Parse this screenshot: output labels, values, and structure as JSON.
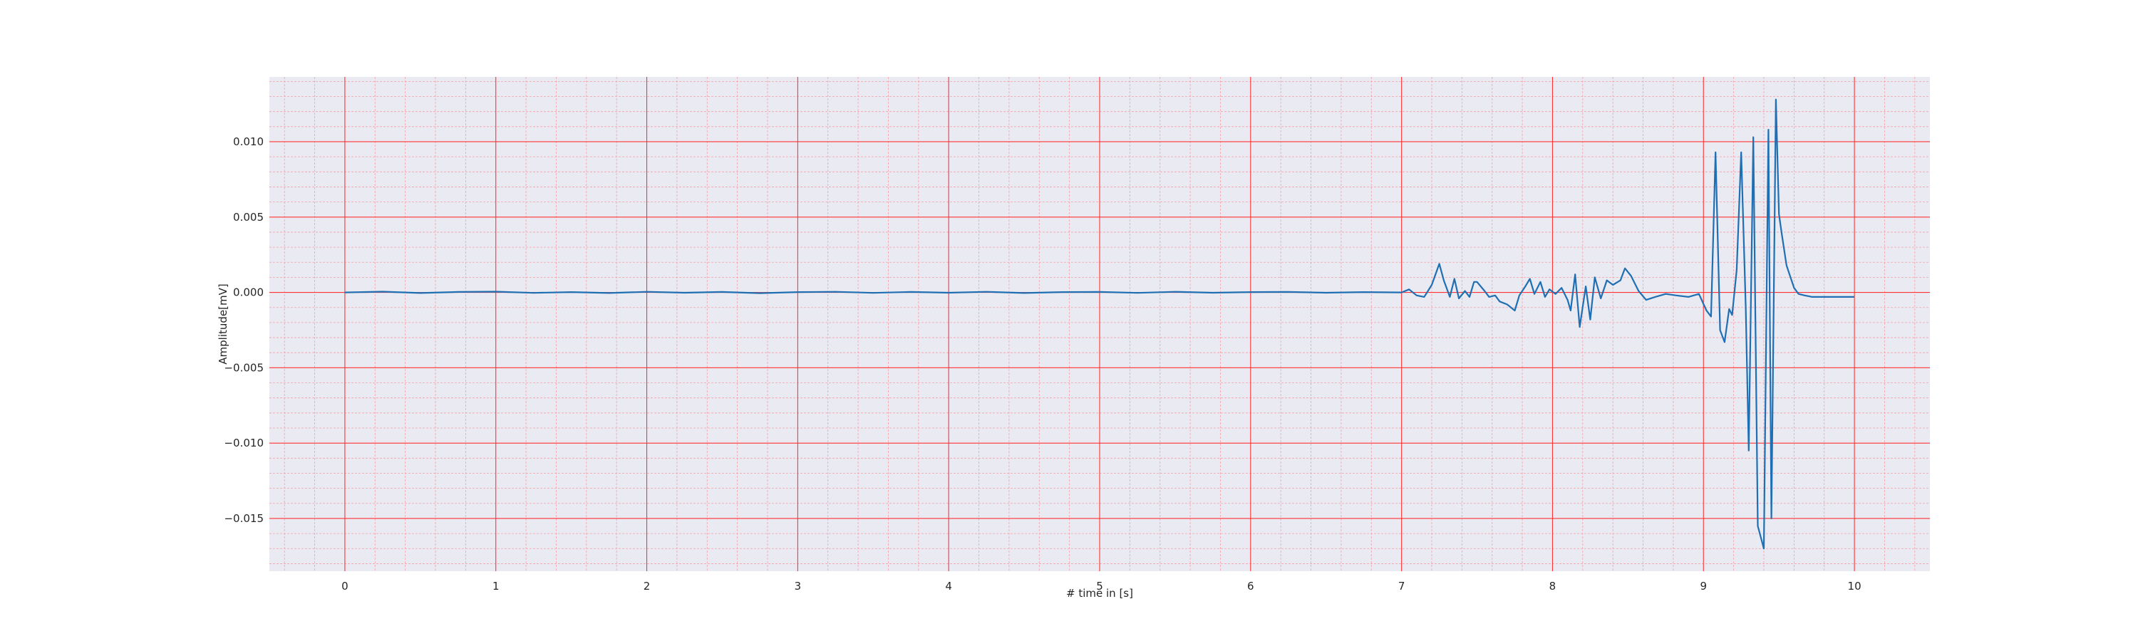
{
  "chart_data": {
    "type": "line",
    "title": "",
    "xlabel": "# time in [s]",
    "ylabel": "Amplitude[mV]",
    "xlim": [
      -0.5,
      10.5
    ],
    "ylim": [
      -0.0185,
      0.0143
    ],
    "x_ticks": [
      0,
      1,
      2,
      3,
      4,
      5,
      6,
      7,
      8,
      9,
      10
    ],
    "x_tick_labels": [
      "0",
      "1",
      "2",
      "3",
      "4",
      "5",
      "6",
      "7",
      "8",
      "9",
      "10"
    ],
    "y_ticks": [
      -0.015,
      -0.01,
      -0.005,
      0.0,
      0.005,
      0.01
    ],
    "y_tick_labels": [
      "−0.015",
      "−0.010",
      "−0.005",
      "0.000",
      "0.005",
      "0.010"
    ],
    "grid": {
      "major": true,
      "minor": true,
      "major_color": "#ff3333",
      "minor_color": "#f5a0a8"
    },
    "background_color": "#eaeaf2",
    "series": [
      {
        "color": "#1f6fb2",
        "x": [
          0,
          0.25,
          0.5,
          0.75,
          1,
          1.25,
          1.5,
          1.75,
          2,
          2.25,
          2.5,
          2.75,
          3,
          3.25,
          3.5,
          3.75,
          4,
          4.25,
          4.5,
          4.75,
          5,
          5.25,
          5.5,
          5.75,
          6,
          6.25,
          6.5,
          6.75,
          7,
          7.05,
          7.1,
          7.15,
          7.2,
          7.25,
          7.28,
          7.32,
          7.35,
          7.38,
          7.42,
          7.45,
          7.48,
          7.5,
          7.55,
          7.58,
          7.62,
          7.65,
          7.7,
          7.75,
          7.78,
          7.82,
          7.85,
          7.88,
          7.92,
          7.95,
          7.98,
          8.02,
          8.06,
          8.1,
          8.12,
          8.15,
          8.18,
          8.22,
          8.25,
          8.28,
          8.32,
          8.36,
          8.4,
          8.45,
          8.48,
          8.52,
          8.57,
          8.62,
          8.68,
          8.75,
          8.82,
          8.9,
          8.97,
          9.02,
          9.05,
          9.08,
          9.11,
          9.14,
          9.17,
          9.19,
          9.22,
          9.25,
          9.28,
          9.3,
          9.33,
          9.36,
          9.4,
          9.43,
          9.45,
          9.48,
          9.5,
          9.52,
          9.55,
          9.57,
          9.6,
          9.63,
          9.67,
          9.72,
          9.78,
          9.85,
          9.92,
          10
        ],
        "y": [
          0,
          5e-05,
          -4e-05,
          3e-05,
          5e-05,
          -3e-05,
          2e-05,
          -4e-05,
          4e-05,
          -2e-05,
          3e-05,
          -5e-05,
          2e-05,
          4e-05,
          -3e-05,
          3e-05,
          -2e-05,
          4e-05,
          -4e-05,
          2e-05,
          3e-05,
          -3e-05,
          4e-05,
          -2e-05,
          2e-05,
          3e-05,
          -2e-05,
          2e-05,
          0,
          0.0002,
          -0.0002,
          -0.0003,
          0.0005,
          0.0019,
          0.0008,
          -0.0003,
          0.0009,
          -0.0004,
          0.0001,
          -0.0003,
          0.0007,
          0.0007,
          0.0001,
          -0.0003,
          -0.0002,
          -0.0006,
          -0.0008,
          -0.0012,
          -0.0002,
          0.0004,
          0.0009,
          -0.0001,
          0.0007,
          -0.0003,
          0.0002,
          -0.0001,
          0.0003,
          -0.0005,
          -0.0012,
          0.0012,
          -0.0023,
          0.0004,
          -0.0018,
          0.001,
          -0.0004,
          0.0008,
          0.0005,
          0.0008,
          0.0016,
          0.0011,
          0.0001,
          -0.0005,
          -0.0003,
          -0.0001,
          -0.0002,
          -0.0003,
          -0.0001,
          -0.0012,
          -0.0016,
          0.0093,
          -0.0025,
          -0.0033,
          -0.0011,
          -0.0015,
          0.0015,
          0.0093,
          -0.001,
          -0.0105,
          0.0103,
          -0.0155,
          -0.017,
          0.0108,
          -0.015,
          0.0128,
          0.0052,
          0.0038,
          0.0018,
          0.0012,
          0.0003,
          -0.0001,
          -0.0002,
          -0.0003,
          -0.0003,
          -0.0003,
          -0.0003,
          -0.0003
        ]
      }
    ]
  }
}
